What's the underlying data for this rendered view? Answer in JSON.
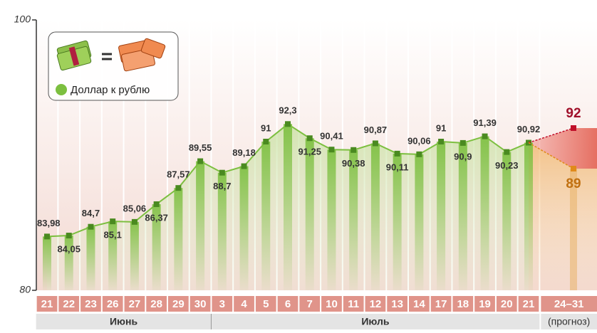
{
  "chart_data": {
    "type": "line",
    "categories": [
      "21",
      "22",
      "23",
      "26",
      "27",
      "28",
      "29",
      "30",
      "3",
      "4",
      "5",
      "6",
      "7",
      "10",
      "11",
      "12",
      "13",
      "14",
      "17",
      "18",
      "19",
      "20",
      "21"
    ],
    "months": [
      {
        "label": "Июнь",
        "count": 8
      },
      {
        "label": "Июль",
        "count": 15
      }
    ],
    "series": [
      {
        "name": "Доллар к рублю",
        "color": "#7cbf3f",
        "values": [
          83.98,
          84.05,
          84.7,
          85.1,
          85.06,
          86.37,
          87.57,
          89.55,
          88.7,
          89.18,
          91,
          92.3,
          91.25,
          90.41,
          90.38,
          90.87,
          90.11,
          90.06,
          91,
          90.9,
          91.39,
          90.23,
          90.92
        ],
        "value_labels": [
          "83,98",
          "84,05",
          "84,7",
          "85,1",
          "85,06",
          "86,37",
          "87,57",
          "89,55",
          "88,7",
          "89,18",
          "91",
          "92,3",
          "91,25",
          "90,41",
          "90,38",
          "90,87",
          "90,11",
          "90,06",
          "91",
          "90,9",
          "91,39",
          "90,23",
          "90,92"
        ]
      }
    ],
    "forecast": {
      "category": "24–31",
      "note": "(прогноз)",
      "series": [
        {
          "values": [
            92
          ],
          "color": "#c0102a"
        },
        {
          "values": [
            89
          ],
          "color": "#e08a1a"
        }
      ]
    },
    "ylim": [
      80,
      100
    ],
    "yticks": [
      80,
      100
    ]
  }
}
